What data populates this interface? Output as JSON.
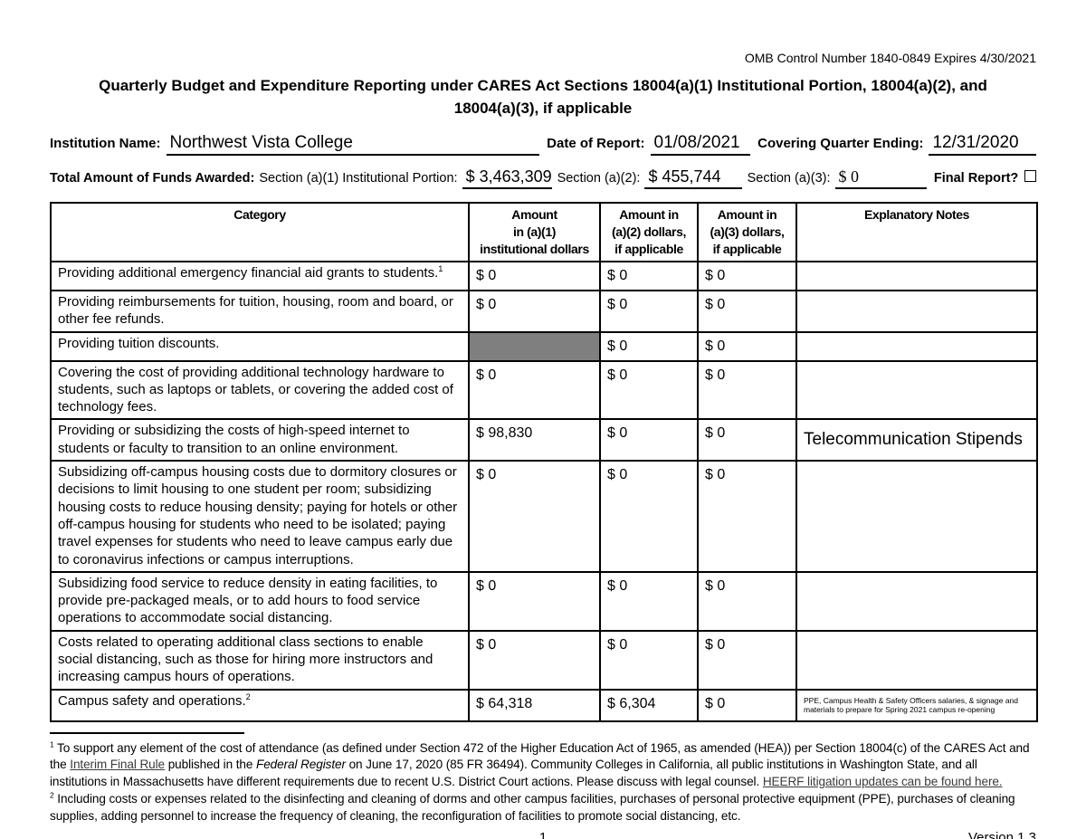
{
  "header": {
    "omb_line": "OMB Control Number 1840-0849 Expires 4/30/2021",
    "title_line1": "Quarterly Budget and Expenditure Reporting under CARES Act Sections 18004(a)(1) Institutional Portion, 18004(a)(2), and",
    "title_line2": "18004(a)(3), if applicable"
  },
  "form": {
    "institution_label": "Institution Name:",
    "institution_value": "Northwest Vista College",
    "date_label": "Date of Report:",
    "date_value": "01/08/2021",
    "quarter_label": "Covering Quarter Ending:",
    "quarter_value": "12/31/2020",
    "funds_label": "Total Amount of Funds Awarded:",
    "section_a1_label": "Section (a)(1) Institutional Portion:",
    "section_a1_value": "$ 3,463,309",
    "section_a2_label": "Section (a)(2):",
    "section_a2_value": "$ 455,744",
    "section_a3_label": "Section (a)(3):",
    "section_a3_value": "$ 0",
    "final_report_label": "Final Report?"
  },
  "table": {
    "headers": [
      "Category",
      "Amount\nin (a)(1)\ninstitutional dollars",
      "Amount in\n(a)(2) dollars,\nif applicable",
      "Amount in\n(a)(3) dollars,\nif applicable",
      "Explanatory Notes"
    ],
    "rows": [
      {
        "category": "Providing additional emergency financial aid grants to students.",
        "sup": "1",
        "a1": "$ 0",
        "a2": "$ 0",
        "a3": "$ 0",
        "note": "",
        "note_style": ""
      },
      {
        "category": "Providing reimbursements for tuition, housing, room and board, or other fee refunds.",
        "a1": "$ 0",
        "a2": "$ 0",
        "a3": "$ 0",
        "note": "",
        "note_style": ""
      },
      {
        "category": "Providing tuition discounts.",
        "a1": null,
        "a2": "$ 0",
        "a3": "$ 0",
        "note": "",
        "note_style": ""
      },
      {
        "category": "Covering the cost of providing additional technology hardware to students, such as laptops or tablets, or covering the added cost of technology fees.",
        "a1": "$ 0",
        "a2": "$ 0",
        "a3": "$ 0",
        "note": "",
        "note_style": ""
      },
      {
        "category": "Providing or subsidizing the costs of high-speed internet to students or faculty to transition to an online environment.",
        "a1": "$ 98,830",
        "a2": "$ 0",
        "a3": "$ 0",
        "note": "Telecommunication Stipends",
        "note_style": "large"
      },
      {
        "category": "Subsidizing off-campus housing costs due to dormitory closures or decisions to limit housing to one student per room; subsidizing housing costs to reduce housing density; paying for hotels or other off-campus housing for students who need to be isolated; paying travel expenses for students who need to leave campus early due to coronavirus infections or campus interruptions.",
        "a1": "$ 0",
        "a2": "$ 0",
        "a3": "$ 0",
        "note": "",
        "note_style": ""
      },
      {
        "category": "Subsidizing food service to reduce density in eating facilities, to provide pre-packaged meals, or to add hours to food service operations to accommodate social distancing.",
        "a1": "$ 0",
        "a2": "$ 0",
        "a3": "$ 0",
        "note": "",
        "note_style": ""
      },
      {
        "category": "Costs related to operating additional class sections to enable social distancing, such as those for hiring more instructors and increasing campus hours of operations.",
        "a1": "$ 0",
        "a2": "$ 0",
        "a3": "$ 0",
        "note": "",
        "note_style": ""
      },
      {
        "category": "Campus safety and operations.",
        "sup": "2",
        "a1": "$ 64,318",
        "a2": "$ 6,304",
        "a3": "$ 0",
        "note": "PPE, Campus Health &  Safety Officers salaries, & signage and materials to prepare for Spring 2021 campus re-opening",
        "note_style": "small"
      }
    ]
  },
  "footnotes": [
    {
      "segments": [
        {
          "s": "sup",
          "t": "1"
        },
        {
          "s": "text",
          "t": " To support any element of the cost of attendance (as defined under Section 472 of the Higher Education Act of 1965, as amended (HEA)) per Section 18004(c) of the CARES Act and the "
        },
        {
          "s": "link",
          "t": "Interim Final Rule"
        },
        {
          "s": "text",
          "t": " published in the "
        },
        {
          "s": "italic",
          "t": "Federal Register"
        },
        {
          "s": "text",
          "t": " on June 17, 2020 (85 FR 36494). Community Colleges in California, all public institutions in Washington State, and all institutions in Massachusetts have different requirements due to recent U.S. District Court actions. Please discuss with legal counsel. "
        },
        {
          "s": "link",
          "t": "HEERF litigation updates can be found here."
        }
      ]
    },
    {
      "segments": [
        {
          "s": "sup",
          "t": "2"
        },
        {
          "s": "text",
          "t": " Including costs or expenses related to the disinfecting and cleaning of dorms and other campus facilities, purchases of personal protective equipment (PPE), purchases of cleaning supplies, adding personnel to increase the frequency of cleaning, the reconfiguration of facilities to promote social distancing, etc."
        }
      ]
    }
  ],
  "footer": {
    "page_number": "1",
    "version": "Version 1.3"
  },
  "colors": {
    "shaded_cell": "#7f7f7f",
    "border": "#000000",
    "text": "#000000"
  }
}
